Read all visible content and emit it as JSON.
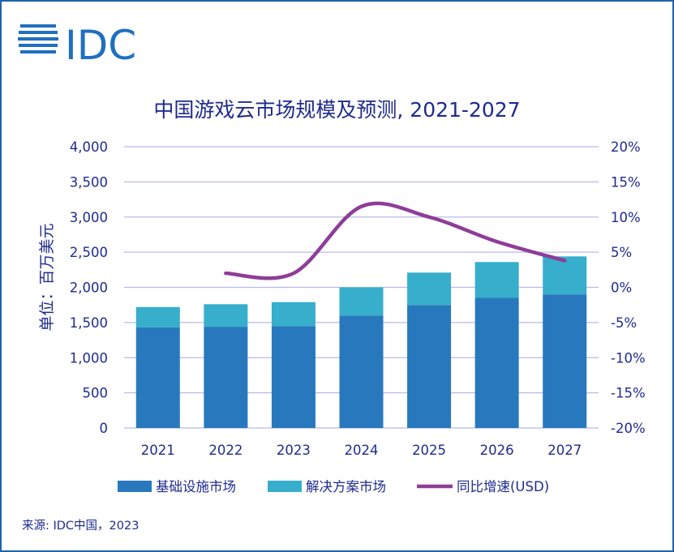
{
  "logo_text": "IDC",
  "source": "来源: IDC中国，2023",
  "colors": {
    "infrastructure": "#2878bd",
    "solutions": "#37aecb",
    "growth": "#8e3d98",
    "axis_text": "#1e2b8f",
    "grid": "#b9b9ea",
    "frame": "#1f63ad",
    "logo": "#1f6fc0"
  },
  "chart_data": {
    "type": "bar",
    "stacked": true,
    "title": "中国游戏云市场规模及预测, 2021-2027",
    "ylabel": "单位：百万美元",
    "categories": [
      "2021",
      "2022",
      "2023",
      "2024",
      "2025",
      "2026",
      "2027"
    ],
    "ylim": [
      0,
      4000
    ],
    "y_ticks": [
      "0",
      "500",
      "1,000",
      "1,500",
      "2,000",
      "2,500",
      "3,000",
      "3,500",
      "4,000"
    ],
    "y2lim": [
      -20,
      20
    ],
    "y2_ticks": [
      "-20%",
      "-15%",
      "-10%",
      "-5%",
      "0%",
      "5%",
      "10%",
      "15%",
      "20%"
    ],
    "grid": true,
    "legend_position": "bottom",
    "series": [
      {
        "name": "基础设施市场",
        "type": "bar",
        "values": [
          1430,
          1440,
          1450,
          1600,
          1750,
          1850,
          1900
        ]
      },
      {
        "name": "解决方案市场",
        "type": "bar",
        "values": [
          290,
          320,
          340,
          400,
          460,
          510,
          540
        ]
      },
      {
        "name": "同比增速(USD)",
        "type": "line",
        "axis": "right",
        "x": [
          "2022",
          "2023",
          "2024",
          "2025",
          "2026",
          "2027"
        ],
        "values": [
          2.0,
          2.0,
          11.5,
          10.0,
          6.5,
          3.8
        ]
      }
    ]
  }
}
